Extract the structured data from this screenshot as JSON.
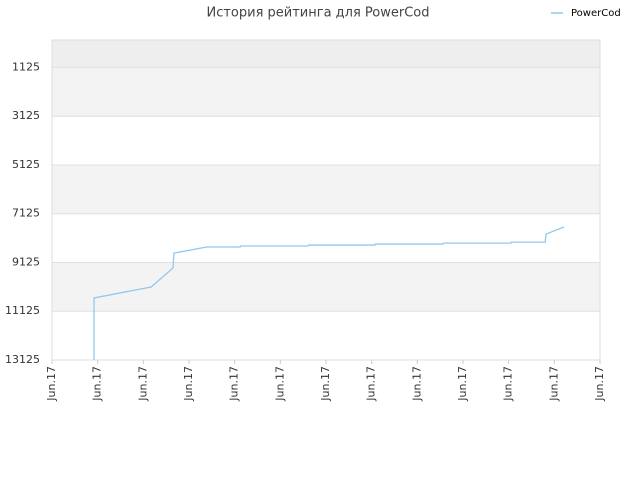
{
  "chart_data": {
    "type": "line",
    "title": "История рейтинга для PowerCod",
    "series": [
      {
        "name": "PowerCod",
        "color": "#90c8f0",
        "x": [
          0.92,
          0.92,
          2.17,
          2.65,
          2.67,
          3.39,
          4.12,
          4.13,
          5.61,
          5.62,
          7.07,
          7.08,
          8.56,
          8.57,
          10.05,
          10.06,
          10.8,
          10.82,
          11.21
        ],
        "values": [
          13125,
          10580,
          10130,
          9350,
          8740,
          8490,
          8490,
          8450,
          8450,
          8410,
          8410,
          8370,
          8370,
          8330,
          8330,
          8290,
          8290,
          7960,
          7670
        ]
      }
    ],
    "ylim": [
      13125,
      0
    ],
    "yticks": [
      1125,
      3125,
      5125,
      7125,
      9125,
      11125,
      13125
    ],
    "xlim": [
      0,
      12
    ],
    "xticks": [
      {
        "value": 0,
        "label": "Jun.17"
      },
      {
        "value": 1,
        "label": "Jun.17"
      },
      {
        "value": 2,
        "label": "Jun.17"
      },
      {
        "value": 3,
        "label": "Jun.17"
      },
      {
        "value": 4,
        "label": "Jun.17"
      },
      {
        "value": 5,
        "label": "Jun.17"
      },
      {
        "value": 6,
        "label": "Jun.17"
      },
      {
        "value": 7,
        "label": "Jun.17"
      },
      {
        "value": 8,
        "label": "Jun.17"
      },
      {
        "value": 9,
        "label": "Jun.17"
      },
      {
        "value": 10,
        "label": "Jun.17"
      },
      {
        "value": 11,
        "label": "Jun.17"
      },
      {
        "value": 12,
        "label": "Jun.17"
      }
    ],
    "grid": true,
    "legend": "top-right"
  }
}
